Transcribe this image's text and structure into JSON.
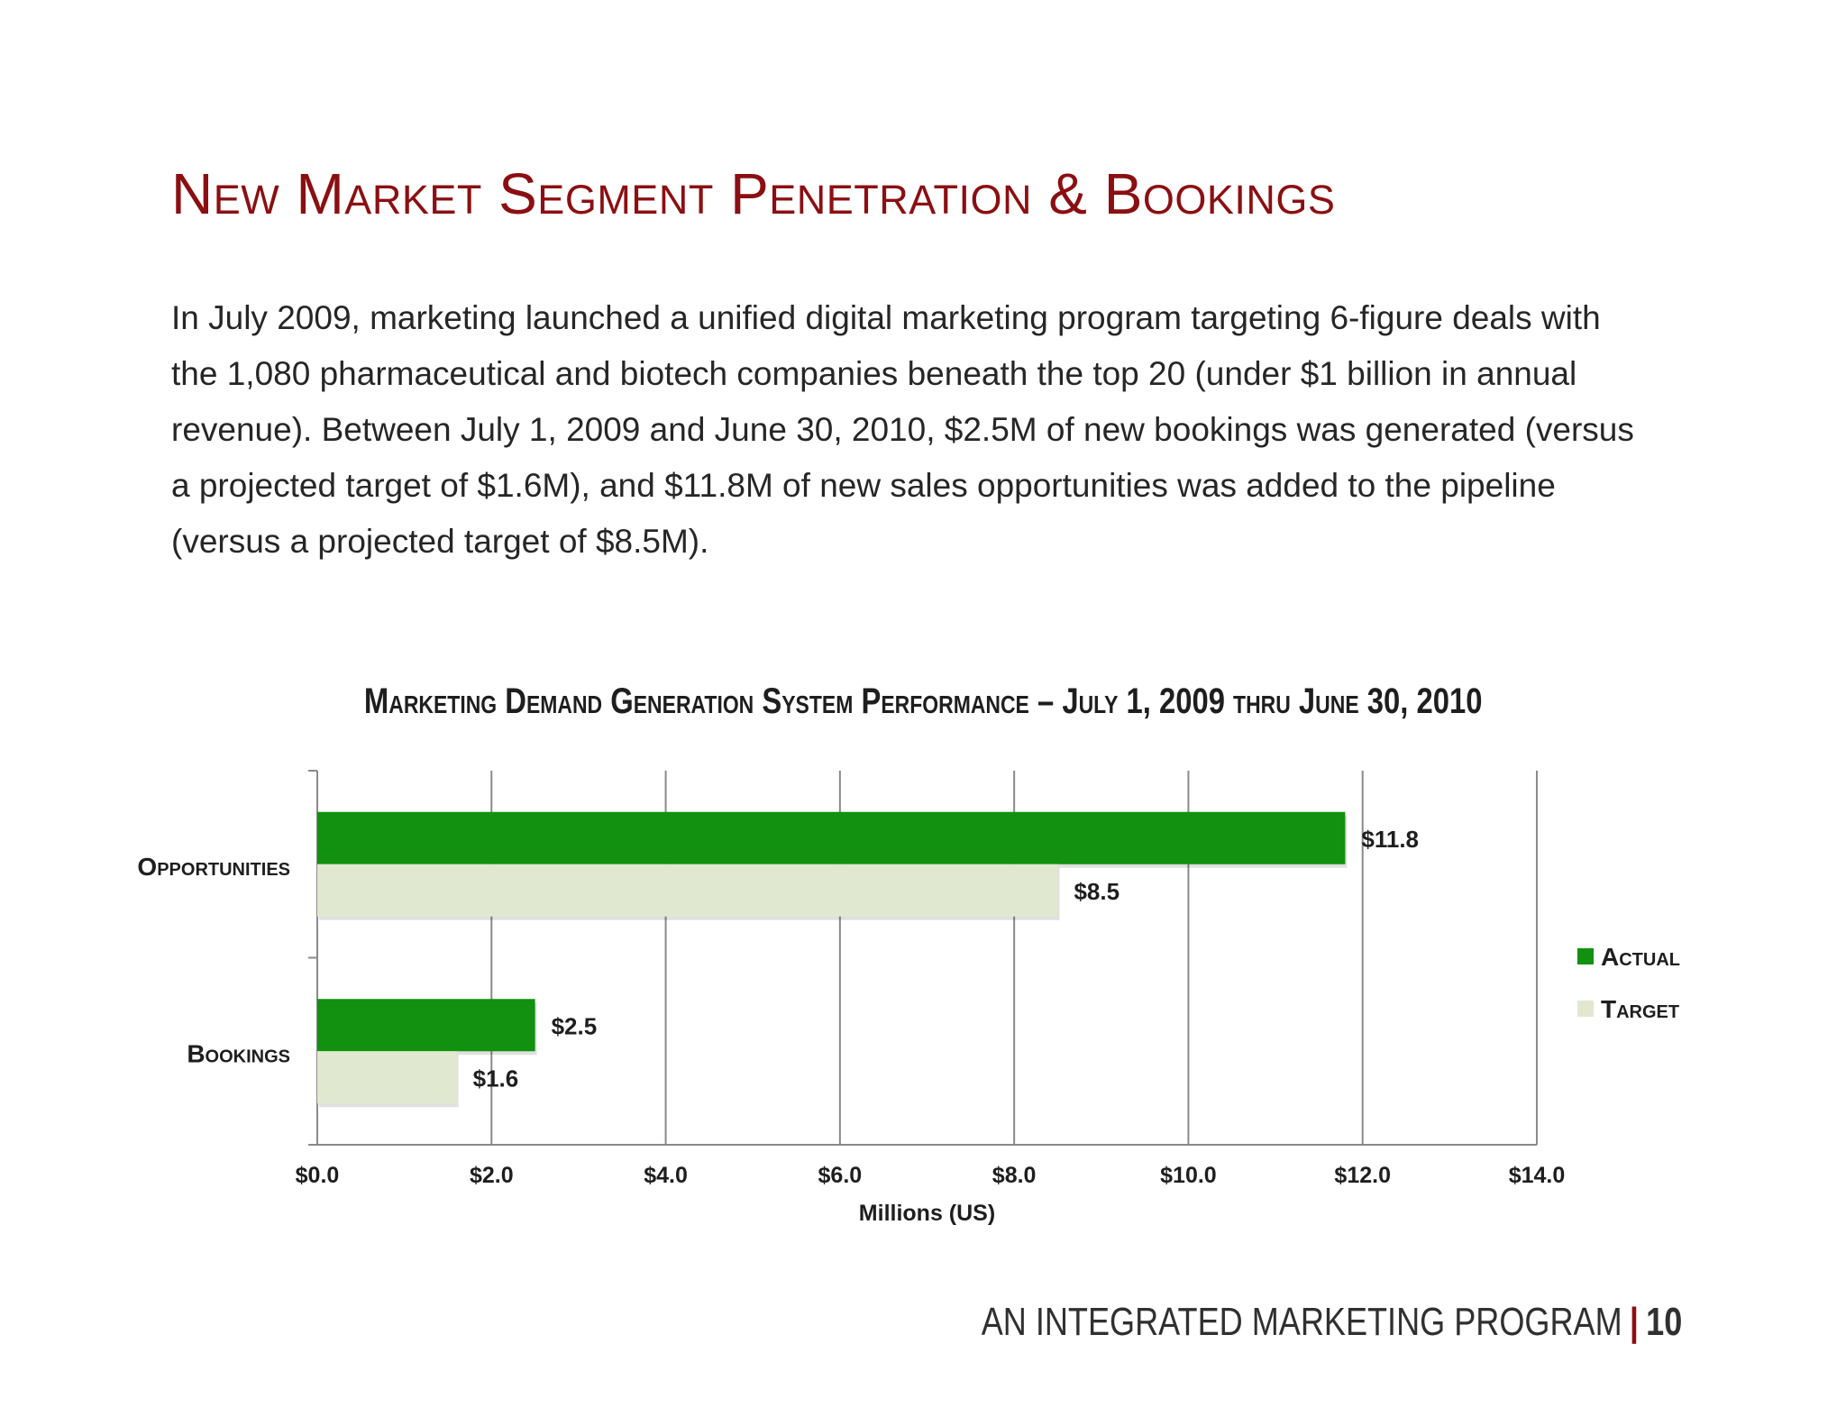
{
  "page": {
    "title": "New Market Segment Penetration & Bookings",
    "body": "In July 2009, marketing launched a unified digital marketing program targeting 6-figure deals with the 1,080 pharmaceutical and biotech companies beneath the top 20 (under $1 billion in annual revenue). Between July 1, 2009 and June 30, 2010, $2.5M of new bookings was generated (versus a projected target of $1.6M), and $11.8M of new sales opportunities was added to the pipeline (versus a projected target of $8.5M).",
    "footer_text": "AN INTEGRATED MARKETING PROGRAM",
    "footer_separator": "|",
    "page_number": "10"
  },
  "colors": {
    "title": "#8b0f12",
    "actual": "#12900f",
    "target": "#e0e9cf",
    "grid": "#8a8a8a"
  },
  "chart_data": {
    "type": "bar",
    "orientation": "horizontal",
    "title": "Marketing Demand Generation System Performance – July 1, 2009 thru June 30, 2010",
    "categories": [
      "Opportunities",
      "Bookings"
    ],
    "series": [
      {
        "name": "Actual",
        "values": [
          11.8,
          2.5
        ],
        "labels": [
          "$11.8",
          "$2.5"
        ],
        "color": "#12900f"
      },
      {
        "name": "Target",
        "values": [
          8.5,
          1.6
        ],
        "labels": [
          "$8.5",
          "$1.6"
        ],
        "color": "#e0e9cf"
      }
    ],
    "xlabel": "Millions (US)",
    "ylabel": "",
    "xlim": [
      0,
      14
    ],
    "xticks": [
      0,
      2,
      4,
      6,
      8,
      10,
      12,
      14
    ],
    "xtick_labels": [
      "$0.0",
      "$2.0",
      "$4.0",
      "$6.0",
      "$8.0",
      "$10.0",
      "$12.0",
      "$14.0"
    ],
    "grid": "vertical",
    "legend": "right"
  }
}
